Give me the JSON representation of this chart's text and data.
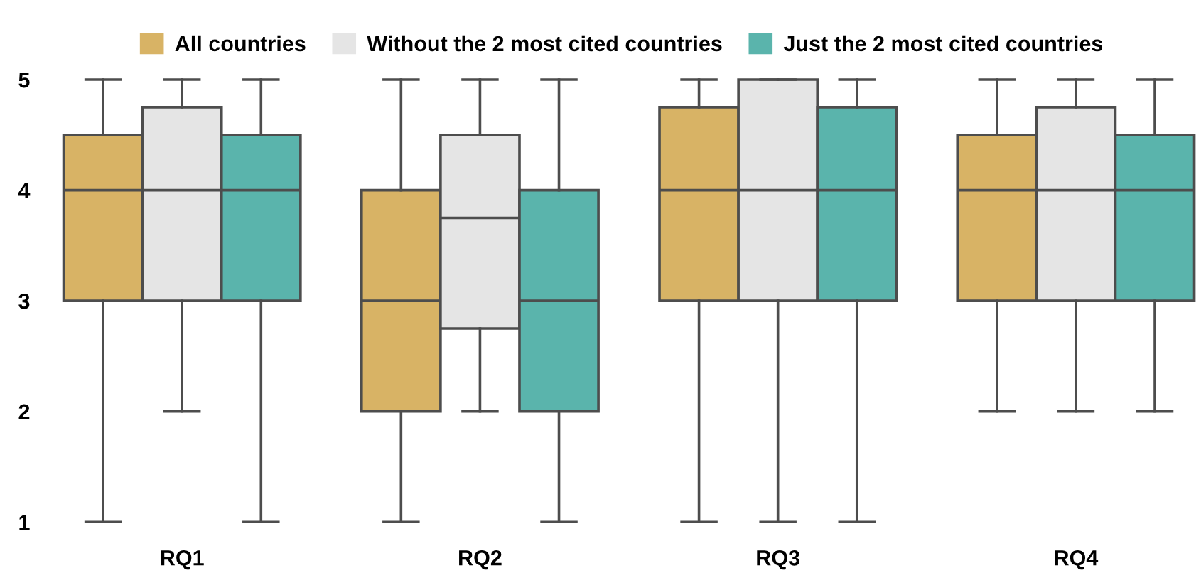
{
  "chart_data": {
    "type": "box",
    "categories": [
      "RQ1",
      "RQ2",
      "RQ3",
      "RQ4"
    ],
    "series": [
      {
        "name": "All countries",
        "color": "#d8b365",
        "boxes": [
          {
            "low": 1,
            "q1": 3,
            "median": 4,
            "q3": 4.5,
            "high": 5
          },
          {
            "low": 1,
            "q1": 2,
            "median": 3,
            "q3": 4,
            "high": 5
          },
          {
            "low": 1,
            "q1": 3,
            "median": 4,
            "q3": 4.75,
            "high": 5
          },
          {
            "low": 2,
            "q1": 3,
            "median": 4,
            "q3": 4.5,
            "high": 5
          }
        ]
      },
      {
        "name": "Without the 2 most cited countries",
        "color": "#e5e5e5",
        "boxes": [
          {
            "low": 2,
            "q1": 3,
            "median": 4,
            "q3": 4.75,
            "high": 5
          },
          {
            "low": 2,
            "q1": 2.75,
            "median": 3.75,
            "q3": 4.5,
            "high": 5
          },
          {
            "low": 1,
            "q1": 3,
            "median": 4,
            "q3": 5,
            "high": 5
          },
          {
            "low": 2,
            "q1": 3,
            "median": 4,
            "q3": 4.75,
            "high": 5
          }
        ]
      },
      {
        "name": "Just the 2 most cited countries",
        "color": "#5ab4ac",
        "boxes": [
          {
            "low": 1,
            "q1": 3,
            "median": 4,
            "q3": 4.5,
            "high": 5
          },
          {
            "low": 1,
            "q1": 2,
            "median": 3,
            "q3": 4,
            "high": 5
          },
          {
            "low": 1,
            "q1": 3,
            "median": 4,
            "q3": 4.75,
            "high": 5
          },
          {
            "low": 2,
            "q1": 3,
            "median": 4,
            "q3": 4.5,
            "high": 5
          }
        ]
      }
    ],
    "ylim": [
      1,
      5
    ],
    "yticks": [
      1,
      2,
      3,
      4,
      5
    ],
    "grid": false,
    "legend": "top"
  }
}
